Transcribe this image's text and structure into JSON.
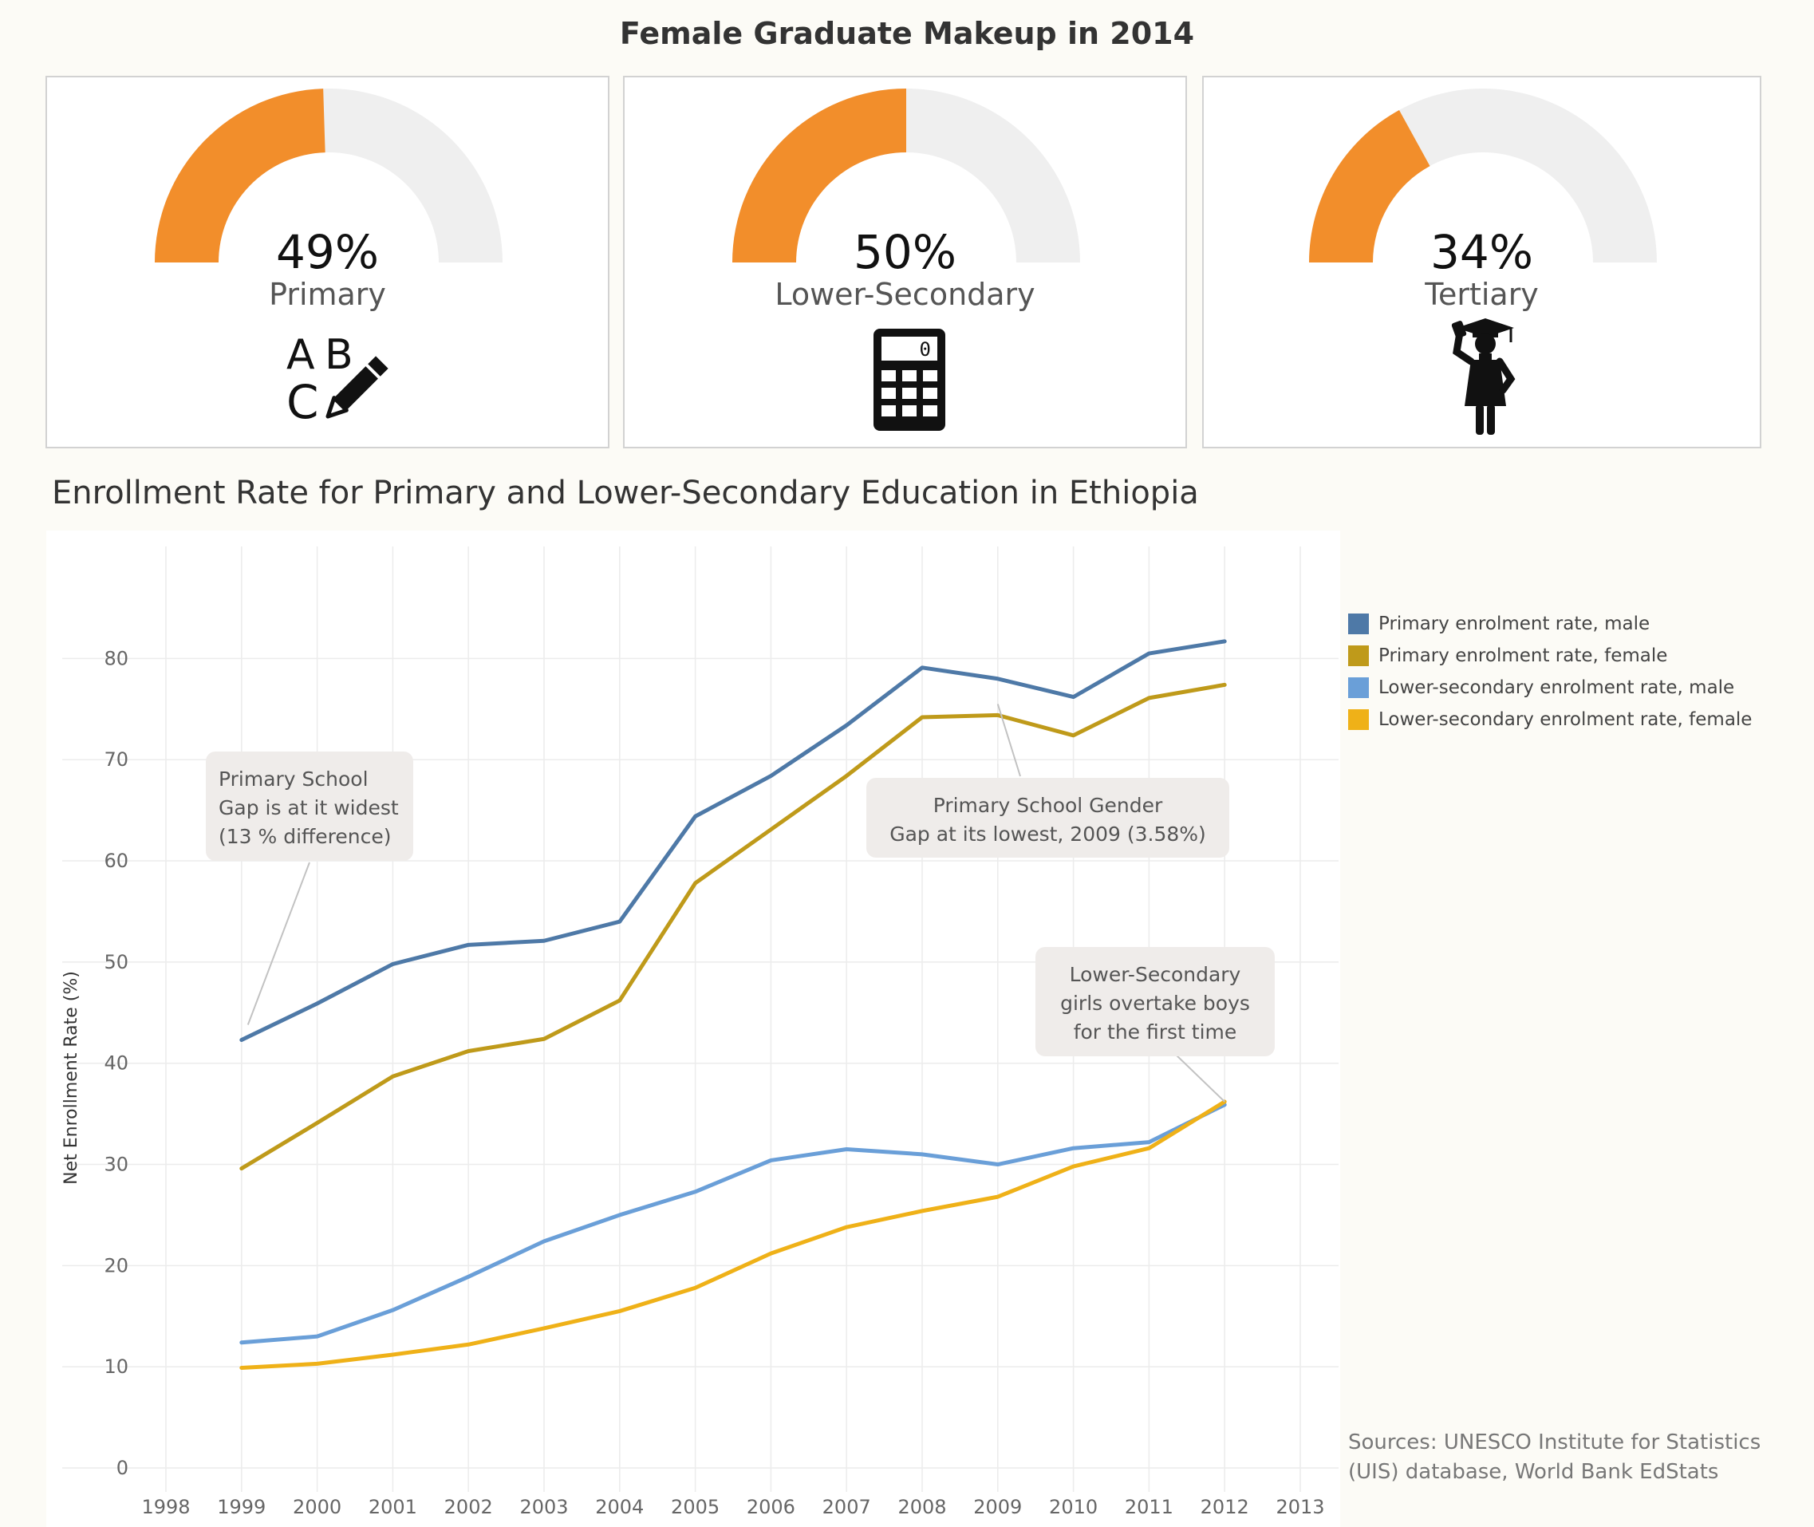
{
  "header": {
    "title": "Female Graduate Makeup in 2014"
  },
  "gauges": [
    {
      "value": 49,
      "display": "49%",
      "label": "Primary",
      "icon": "abc-pencil-icon"
    },
    {
      "value": 50,
      "display": "50%",
      "label": "Lower-Secondary",
      "icon": "calculator-icon"
    },
    {
      "value": 34,
      "display": "34%",
      "label": "Tertiary",
      "icon": "graduate-icon"
    }
  ],
  "icons": {
    "calculator_display": "0"
  },
  "colors": {
    "gauge_fill": "#f28e2b",
    "gauge_track": "#efefef",
    "primary_male": "#4e79a7",
    "primary_female": "#bf9a1a",
    "lower_secondary_male": "#6a9fd8",
    "lower_secondary_female": "#efb118"
  },
  "chart_data": {
    "type": "line",
    "title": "Enrollment Rate for Primary and Lower-Secondary Education in Ethiopia",
    "ylabel": "Net Enrollment Rate (%)",
    "xlabel": "",
    "xlim": [
      1998,
      2013
    ],
    "ylim": [
      0,
      85
    ],
    "x_ticks": [
      1998,
      1999,
      2000,
      2001,
      2002,
      2003,
      2004,
      2005,
      2006,
      2007,
      2008,
      2009,
      2010,
      2011,
      2012,
      2013
    ],
    "y_ticks": [
      0,
      10,
      20,
      30,
      40,
      50,
      60,
      70,
      80
    ],
    "grid": true,
    "legend_position": "right",
    "x": [
      1999,
      2000,
      2001,
      2002,
      2003,
      2004,
      2005,
      2006,
      2007,
      2008,
      2009,
      2010,
      2011,
      2012
    ],
    "series": [
      {
        "name": "Primary enrolment rate, male",
        "values": [
          42.3,
          45.9,
          49.8,
          51.7,
          52.1,
          54.0,
          64.4,
          68.4,
          73.4,
          79.1,
          78.0,
          76.2,
          80.5,
          81.7
        ]
      },
      {
        "name": "Primary enrolment rate, female",
        "values": [
          29.6,
          34.1,
          38.7,
          41.2,
          42.4,
          46.2,
          57.8,
          63.1,
          68.4,
          74.2,
          74.4,
          72.4,
          76.1,
          77.4
        ]
      },
      {
        "name": "Lower-secondary enrolment rate, male",
        "values": [
          12.4,
          13.0,
          15.6,
          18.9,
          22.4,
          25.0,
          27.3,
          30.4,
          31.5,
          31.0,
          30.0,
          31.6,
          32.2,
          35.9
        ]
      },
      {
        "name": "Lower-secondary enrolment rate, female",
        "values": [
          9.9,
          10.3,
          11.2,
          12.2,
          13.8,
          15.5,
          17.8,
          21.2,
          23.8,
          25.4,
          26.8,
          29.8,
          31.6,
          36.2
        ]
      }
    ],
    "annotations": [
      {
        "lines": [
          "Primary School",
          "Gap is at it widest",
          "(13 % difference)"
        ],
        "align": "left",
        "target_x": 1999,
        "target_y": 43.8,
        "anchor": "box-bottom"
      },
      {
        "lines": [
          "Primary School Gender",
          "Gap at its lowest, 2009 (3.58%)"
        ],
        "align": "center",
        "target_x": 2009,
        "target_y": 75.5,
        "anchor": "box-top"
      },
      {
        "lines": [
          "Lower-Secondary",
          "girls overtake boys",
          "for the first time"
        ],
        "align": "center",
        "target_x": 2012,
        "target_y": 36.2,
        "anchor": "box-bottom-right"
      }
    ]
  },
  "footer": {
    "source": "Sources: UNESCO Institute for Statistics (UIS) database, World Bank EdStats"
  }
}
